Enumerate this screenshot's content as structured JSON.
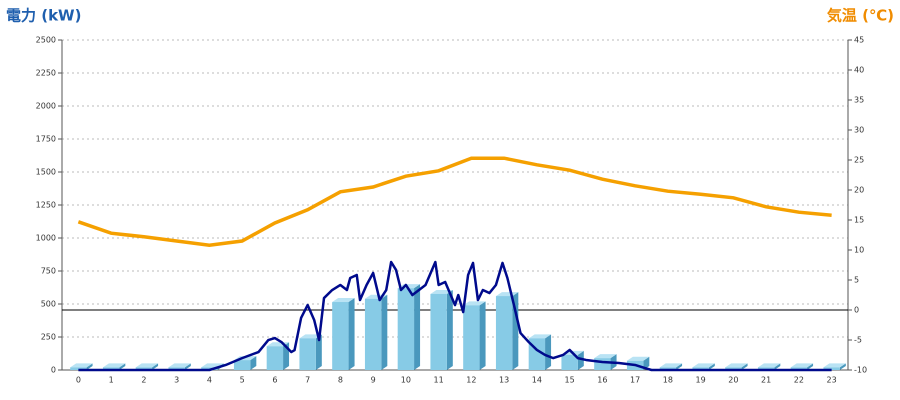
{
  "chart_data": {
    "type": "bar-line",
    "y_title": "電力 (kW)",
    "y2_title": "気温 (℃)",
    "categories": [
      "0",
      "1",
      "2",
      "3",
      "4",
      "5",
      "6",
      "7",
      "8",
      "9",
      "10",
      "11",
      "12",
      "13",
      "14",
      "15",
      "16",
      "17",
      "18",
      "19",
      "20",
      "21",
      "22",
      "23"
    ],
    "ylim": [
      0,
      2500
    ],
    "yticks": [
      0,
      250,
      500,
      750,
      1000,
      1250,
      1500,
      1750,
      2000,
      2250,
      2500
    ],
    "y2lim": [
      -10,
      45
    ],
    "y2ticks": [
      -10,
      -5,
      0,
      5,
      10,
      15,
      20,
      25,
      30,
      35,
      40,
      45
    ],
    "grid": true,
    "reference_line_y2": 0,
    "bars": {
      "color": "#87cbe6",
      "values": [
        20,
        20,
        20,
        20,
        20,
        75,
        180,
        240,
        515,
        540,
        620,
        576,
        490,
        560,
        240,
        115,
        90,
        70,
        20,
        20,
        20,
        20,
        20,
        20
      ]
    },
    "temperature": {
      "color": "#f5a000",
      "axis": "y2",
      "values": [
        14.7,
        12.8,
        12.2,
        11.5,
        10.8,
        11.5,
        14.5,
        16.7,
        19.7,
        20.5,
        22.3,
        23.2,
        25.3,
        25.3,
        24.2,
        23.3,
        21.8,
        20.7,
        19.8,
        19.3,
        18.7,
        17.2,
        16.3,
        15.8
      ]
    },
    "power": {
      "color": "#000a8c",
      "x": [
        0,
        4,
        4.5,
        5,
        5.5,
        5.8,
        6,
        6.2,
        6.5,
        6.6,
        6.8,
        7,
        7.2,
        7.35,
        7.5,
        7.75,
        8,
        8.2,
        8.3,
        8.5,
        8.6,
        8.8,
        9,
        9.2,
        9.4,
        9.55,
        9.7,
        9.85,
        10,
        10.2,
        10.4,
        10.6,
        10.9,
        11,
        11.2,
        11.5,
        11.6,
        11.75,
        11.9,
        12.05,
        12.2,
        12.35,
        12.55,
        12.75,
        12.95,
        13.1,
        13.3,
        13.5,
        13.75,
        14,
        14.25,
        14.5,
        14.8,
        15,
        15.25,
        15.5,
        16,
        16.5,
        17,
        17.3,
        17.5,
        23
      ],
      "values": [
        0,
        0,
        38,
        90,
        136,
        227,
        242,
        212,
        136,
        150,
        394,
        492,
        379,
        227,
        545,
        606,
        644,
        606,
        697,
        720,
        530,
        644,
        735,
        530,
        606,
        818,
        758,
        606,
        644,
        568,
        606,
        644,
        818,
        644,
        667,
        492,
        568,
        439,
        720,
        811,
        530,
        606,
        583,
        644,
        811,
        697,
        492,
        280,
        212,
        152,
        114,
        90,
        114,
        152,
        90,
        76,
        61,
        53,
        38,
        15,
        0,
        0
      ]
    }
  }
}
